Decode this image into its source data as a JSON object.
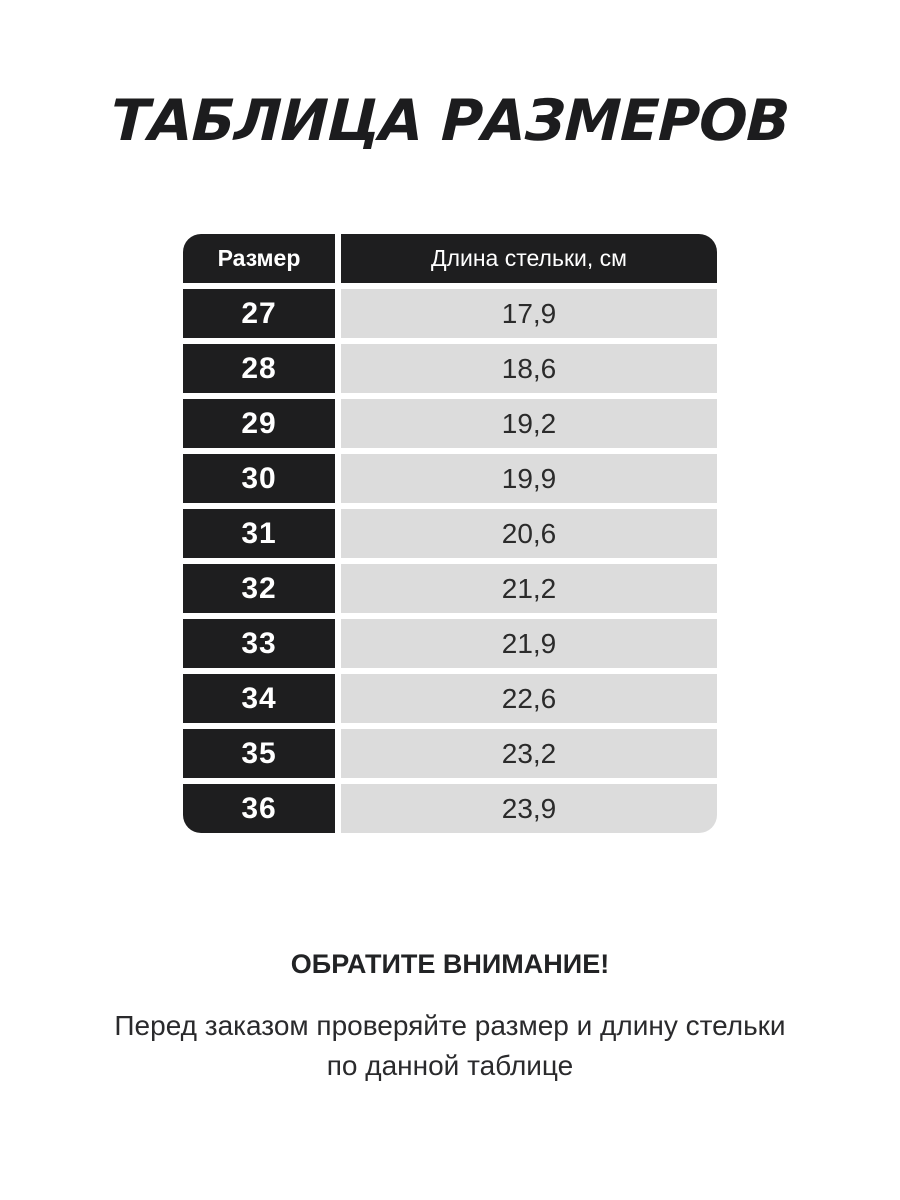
{
  "page": {
    "title": "ТАБЛИЦА РАЗМЕРОВ"
  },
  "size_table": {
    "headers": {
      "size": "Размер",
      "length": "Длина стельки, см"
    },
    "rows": [
      [
        "27",
        "17,9"
      ],
      [
        "28",
        "18,6"
      ],
      [
        "29",
        "19,2"
      ],
      [
        "30",
        "19,9"
      ],
      [
        "31",
        "20,6"
      ],
      [
        "32",
        "21,2"
      ],
      [
        "33",
        "21,9"
      ],
      [
        "34",
        "22,6"
      ],
      [
        "35",
        "23,2"
      ],
      [
        "36",
        "23,9"
      ]
    ]
  },
  "note": {
    "heading": "ОБРАТИТЕ ВНИМАНИЕ!",
    "line1": "Перед заказом проверяйте размер и длину стельки",
    "line2": "по данной таблице"
  },
  "colors": {
    "cell_dark": "#1e1e1f",
    "cell_light": "#dcdcdc",
    "text_on_dark": "#ffffff",
    "text_on_light": "#2b2b2b",
    "background": "#ffffff"
  }
}
